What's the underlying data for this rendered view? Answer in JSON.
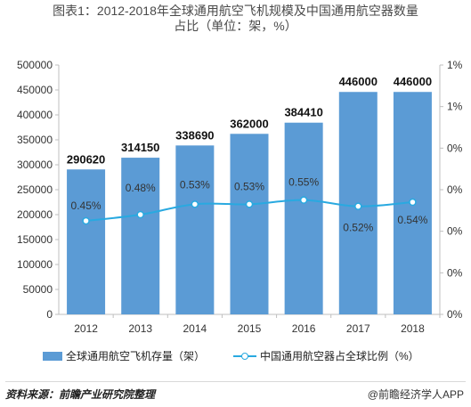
{
  "title": {
    "line1": "图表1：2012-2018年全球通用航空飞机规模及中国通用航空器数量",
    "line2": "占比（单位：架，%）"
  },
  "chart_data": {
    "type": "bar+line",
    "categories": [
      "2012",
      "2013",
      "2014",
      "2015",
      "2016",
      "2017",
      "2018"
    ],
    "series": [
      {
        "name": "全球通用航空飞机存量（架）",
        "type": "bar",
        "axis": "left",
        "values": [
          290620,
          314150,
          338690,
          362000,
          384410,
          446000,
          446000
        ],
        "labels": [
          "290620",
          "314150",
          "338690",
          "362000",
          "384410",
          "446000",
          "446000"
        ],
        "color": "#5b9bd5"
      },
      {
        "name": "中国通用航空器占全球比例（%）",
        "type": "line",
        "axis": "right",
        "values": [
          0.45,
          0.48,
          0.53,
          0.53,
          0.55,
          0.52,
          0.54
        ],
        "labels": [
          "0.45%",
          "0.48%",
          "0.53%",
          "0.53%",
          "0.55%",
          "0.52%",
          "0.54%"
        ],
        "color": "#29a9e0"
      }
    ],
    "y_left": {
      "min": 0,
      "max": 500000,
      "ticks": [
        "0",
        "50000",
        "100000",
        "150000",
        "200000",
        "250000",
        "300000",
        "350000",
        "400000",
        "450000",
        "500000"
      ]
    },
    "y_right": {
      "ticks": [
        "0%",
        "0%",
        "0%",
        "0%",
        "0%",
        "1%",
        "1%"
      ]
    },
    "grid": false,
    "legend": "bottom"
  },
  "legend": {
    "bar_label": "全球通用航空飞机存量（架）",
    "line_label": "中国通用航空器占全球比例（%）"
  },
  "footer": {
    "source": "资料来源：前瞻产业研究院整理",
    "brand": "@前瞻经济学人APP"
  }
}
